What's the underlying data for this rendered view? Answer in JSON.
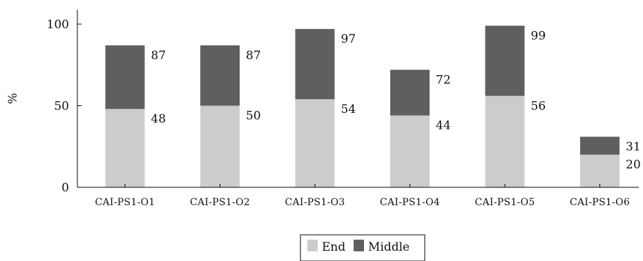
{
  "chart_data": {
    "type": "bar",
    "stacked": true,
    "title": "",
    "xlabel": "",
    "ylabel": "%",
    "ylim": [
      0,
      100
    ],
    "yticks": [
      0,
      50,
      100
    ],
    "grid": false,
    "legend_position": "bottom-center",
    "categories": [
      "CAI-PS1-O1",
      "CAI-PS1-O2",
      "CAI-PS1-O3",
      "CAI-PS1-O4",
      "CAI-PS1-O5",
      "CAI-PS1-O6"
    ],
    "series": [
      {
        "name": "End",
        "color": "#cccccc",
        "values": [
          48,
          50,
          54,
          44,
          56,
          20
        ]
      },
      {
        "name": "Middle",
        "color": "#5f5f5f",
        "values": [
          39,
          37,
          43,
          28,
          43,
          11
        ]
      }
    ],
    "data_labels": {
      "End": [
        "48",
        "50",
        "54",
        "44",
        "56",
        "20"
      ],
      "Total": [
        "87",
        "87",
        "97",
        "72",
        "99",
        "31"
      ]
    }
  }
}
